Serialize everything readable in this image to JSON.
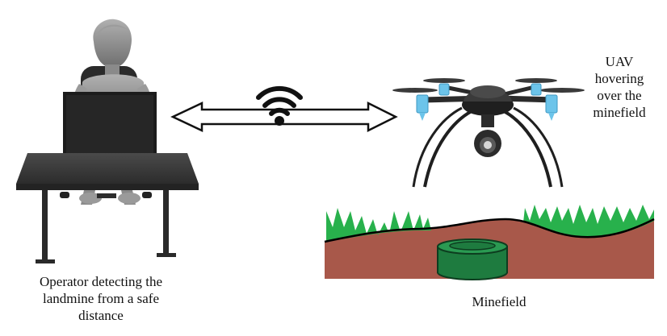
{
  "captions": {
    "operator": "Operator detecting the\nlandmine from a safe\ndistance",
    "uav": "UAV\nhovering\nover the\nminefield",
    "minefield": "Minefield"
  },
  "icons": {
    "operator": "seated-operator-at-desk-with-monitor",
    "link": "double-headed-arrow-with-wifi-signal",
    "uav": "quadcopter-drone-with-camera",
    "minefield": "soil-cross-section-with-grass-and-landmine"
  },
  "colors": {
    "desk": "#3a3a3a",
    "figure": "#8c8c8c",
    "monitor": "#1c1c1c",
    "drone_body": "#2b2b2b",
    "motor_mount": "#6cc4ea",
    "grass": "#28b14c",
    "soil": "#a8584a",
    "mine": "#1e7b3f"
  }
}
